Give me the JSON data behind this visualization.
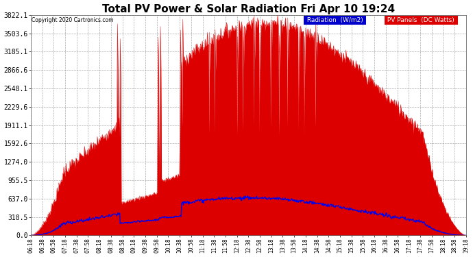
{
  "title": "Total PV Power & Solar Radiation Fri Apr 10 19:24",
  "copyright": "Copyright 2020 Cartronics.com",
  "title_fontsize": 11,
  "background_color": "#ffffff",
  "plot_bg_color": "#ffffff",
  "y_max": 3822.1,
  "y_ticks": [
    0.0,
    318.5,
    637.0,
    955.5,
    1274.0,
    1592.6,
    1911.1,
    2229.6,
    2548.1,
    2866.6,
    3185.1,
    3503.6,
    3822.1
  ],
  "x_labels": [
    "06:18",
    "06:38",
    "06:58",
    "07:18",
    "07:38",
    "07:58",
    "08:18",
    "08:38",
    "08:58",
    "09:18",
    "09:38",
    "09:58",
    "10:18",
    "10:38",
    "10:58",
    "11:18",
    "11:38",
    "11:58",
    "12:18",
    "12:38",
    "12:58",
    "13:18",
    "13:38",
    "13:58",
    "14:18",
    "14:38",
    "14:58",
    "15:18",
    "15:38",
    "15:58",
    "16:18",
    "16:38",
    "16:58",
    "17:18",
    "17:38",
    "17:58",
    "18:18",
    "18:58",
    "19:18"
  ],
  "pv_color": "#dd0000",
  "radiation_color": "#0000ee",
  "legend_radiation_bg": "#0000cc",
  "legend_pv_bg": "#dd0000",
  "grid_color": "#888888",
  "grid_style": "--",
  "figsize": [
    6.9,
    3.75
  ],
  "dpi": 100
}
